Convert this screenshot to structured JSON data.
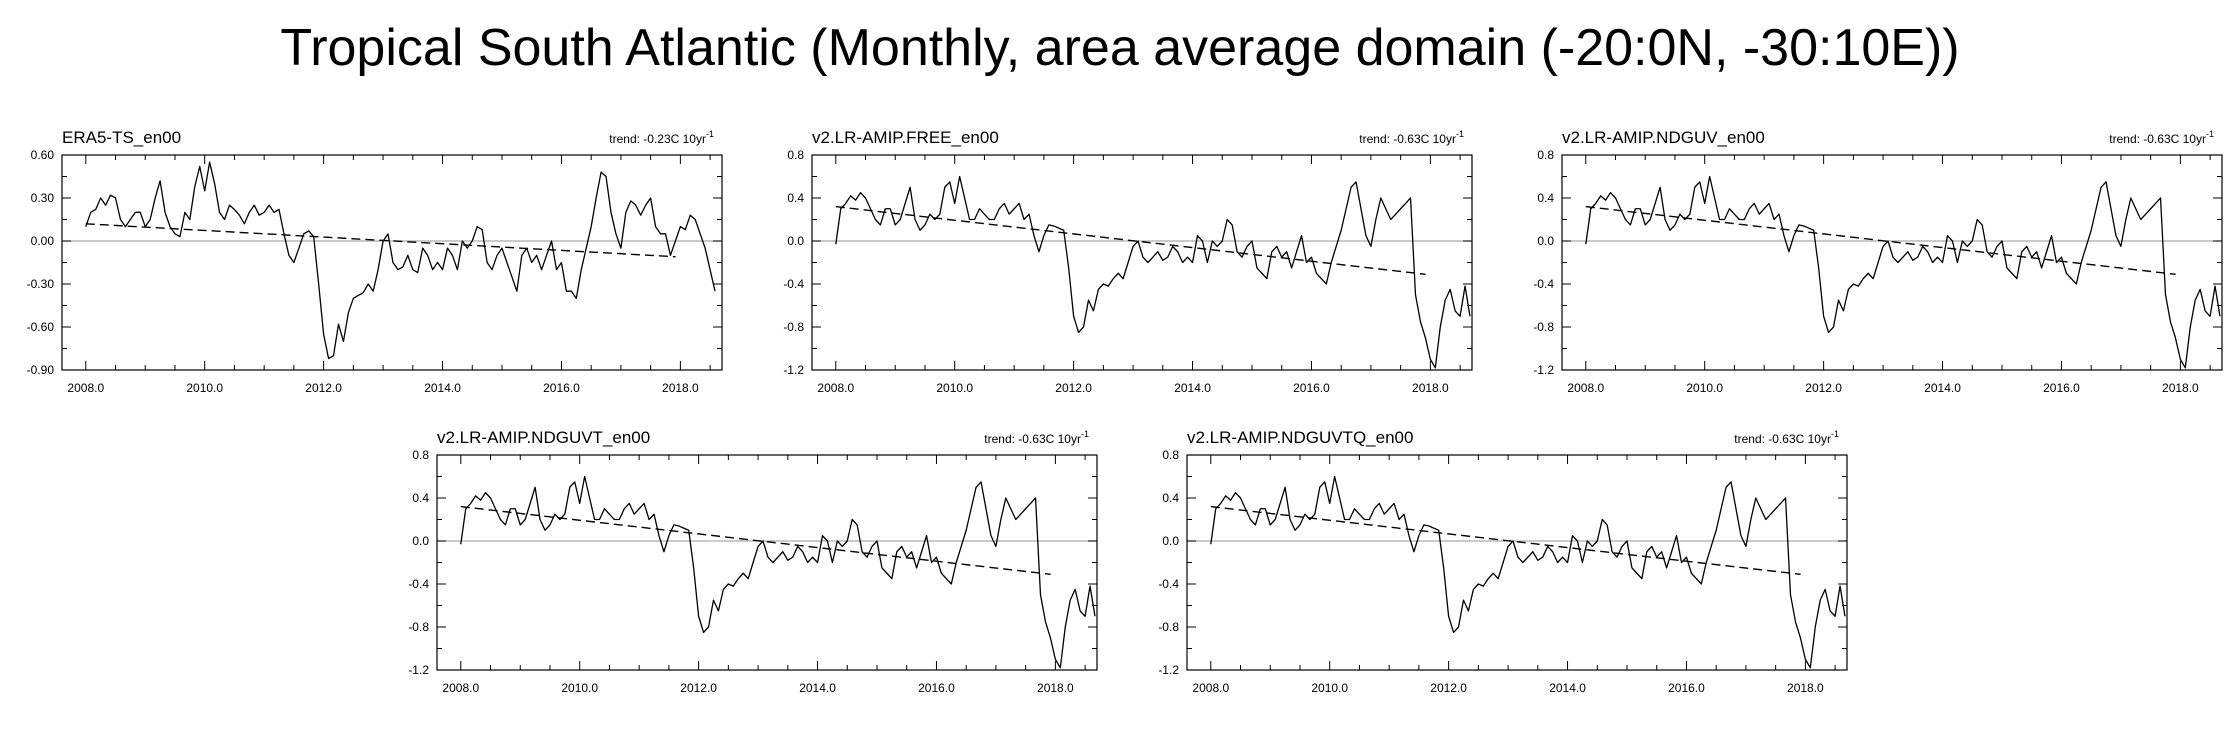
{
  "title": "Tropical South Atlantic (Monthly, area average domain (-20:0N, -30:10E))",
  "chart_data": [
    {
      "type": "line",
      "title": "ERA5-TS_en00",
      "trend_label": "trend: -0.23C 10yr",
      "trend_exponent": "-1",
      "x_ticks": [
        2008.0,
        2010.0,
        2012.0,
        2014.0,
        2016.0,
        2018.0
      ],
      "x_tick_labels": [
        "2008.0",
        "2010.0",
        "2012.0",
        "2014.0",
        "2016.0",
        "2018.0"
      ],
      "xlim": [
        2007.6,
        2018.7
      ],
      "ylim": [
        -0.9,
        0.6
      ],
      "y_ticks": [
        0.6,
        0.3,
        0.0,
        -0.3,
        -0.6,
        -0.9
      ],
      "y_tick_labels": [
        "0.60",
        "0.30",
        "0.00",
        "-0.30",
        "-0.60",
        "-0.90"
      ],
      "zero_line": true,
      "trend_line": {
        "x": [
          2008.0,
          2017.92
        ],
        "y": [
          0.12,
          -0.11
        ]
      },
      "series": [
        {
          "x_start": 2008.0,
          "x_step": 0.08333,
          "values": [
            0.1,
            0.2,
            0.22,
            0.3,
            0.25,
            0.32,
            0.3,
            0.15,
            0.1,
            0.15,
            0.2,
            0.2,
            0.1,
            0.15,
            0.3,
            0.42,
            0.2,
            0.1,
            0.05,
            0.03,
            0.2,
            0.15,
            0.38,
            0.52,
            0.35,
            0.55,
            0.4,
            0.2,
            0.15,
            0.25,
            0.22,
            0.18,
            0.12,
            0.2,
            0.25,
            0.18,
            0.2,
            0.25,
            0.2,
            0.22,
            0.05,
            -0.1,
            -0.15,
            -0.05,
            0.05,
            0.07,
            0.03,
            -0.3,
            -0.65,
            -0.82,
            -0.8,
            -0.58,
            -0.7,
            -0.5,
            -0.4,
            -0.38,
            -0.36,
            -0.3,
            -0.35,
            -0.2,
            0.0,
            0.05,
            -0.15,
            -0.2,
            -0.18,
            -0.1,
            -0.2,
            -0.22,
            -0.05,
            -0.1,
            -0.2,
            -0.15,
            -0.2,
            -0.05,
            -0.1,
            -0.2,
            0.0,
            -0.05,
            0.0,
            0.1,
            0.08,
            -0.15,
            -0.2,
            -0.1,
            -0.05,
            -0.15,
            -0.25,
            -0.35,
            -0.1,
            -0.05,
            -0.15,
            -0.1,
            -0.2,
            -0.1,
            0.0,
            -0.2,
            -0.15,
            -0.35,
            -0.35,
            -0.4,
            -0.2,
            -0.05,
            0.1,
            0.3,
            0.48,
            0.45,
            0.2,
            0.05,
            -0.05,
            0.2,
            0.28,
            0.25,
            0.18,
            0.25,
            0.3,
            0.1,
            0.05,
            0.05,
            -0.1,
            0.0,
            0.1,
            0.08,
            0.18,
            0.15,
            0.05,
            -0.05,
            -0.2,
            -0.35
          ]
        }
      ]
    },
    {
      "type": "line",
      "title": "v2.LR-AMIP.FREE_en00",
      "trend_label": "trend: -0.63C 10yr",
      "trend_exponent": "-1",
      "x_ticks": [
        2008.0,
        2010.0,
        2012.0,
        2014.0,
        2016.0,
        2018.0
      ],
      "x_tick_labels": [
        "2008.0",
        "2010.0",
        "2012.0",
        "2014.0",
        "2016.0",
        "2018.0"
      ],
      "xlim": [
        2007.6,
        2018.7
      ],
      "ylim": [
        -1.2,
        0.8
      ],
      "y_ticks": [
        0.8,
        0.4,
        0.0,
        -0.4,
        -0.8,
        -1.2
      ],
      "y_tick_labels": [
        "0.8",
        "0.4",
        "0.0",
        "-0.4",
        "-0.8",
        "-1.2"
      ],
      "zero_line": true,
      "trend_line": {
        "x": [
          2008.0,
          2017.92
        ],
        "y": [
          0.32,
          -0.31
        ]
      },
      "series": [
        {
          "x_start": 2008.0,
          "x_step": 0.08333,
          "values": [
            -0.03,
            0.3,
            0.35,
            0.42,
            0.38,
            0.45,
            0.4,
            0.3,
            0.2,
            0.15,
            0.3,
            0.3,
            0.15,
            0.2,
            0.35,
            0.5,
            0.2,
            0.1,
            0.15,
            0.25,
            0.2,
            0.25,
            0.5,
            0.55,
            0.35,
            0.6,
            0.4,
            0.2,
            0.2,
            0.3,
            0.25,
            0.2,
            0.2,
            0.3,
            0.35,
            0.25,
            0.3,
            0.35,
            0.2,
            0.25,
            0.05,
            -0.1,
            0.05,
            0.15,
            0.14,
            0.12,
            0.1,
            -0.25,
            -0.7,
            -0.85,
            -0.8,
            -0.55,
            -0.65,
            -0.45,
            -0.4,
            -0.42,
            -0.35,
            -0.3,
            -0.35,
            -0.2,
            -0.05,
            0.0,
            -0.15,
            -0.2,
            -0.15,
            -0.1,
            -0.18,
            -0.15,
            -0.05,
            -0.1,
            -0.2,
            -0.15,
            -0.2,
            0.05,
            0.0,
            -0.2,
            0.0,
            -0.05,
            0.0,
            0.2,
            0.15,
            -0.1,
            -0.15,
            -0.05,
            0.0,
            -0.25,
            -0.3,
            -0.35,
            -0.1,
            -0.05,
            -0.15,
            -0.1,
            -0.25,
            -0.1,
            0.05,
            -0.2,
            -0.15,
            -0.3,
            -0.35,
            -0.4,
            -0.2,
            -0.05,
            0.1,
            0.3,
            0.5,
            0.55,
            0.3,
            0.05,
            -0.05,
            0.2,
            0.4,
            0.3,
            0.2,
            0.25,
            0.3,
            0.35,
            0.4,
            -0.5,
            -0.75,
            -0.9,
            -1.1,
            -1.18,
            -0.8,
            -0.55,
            -0.45,
            -0.65,
            -0.7,
            -0.42,
            -0.7
          ]
        }
      ]
    },
    {
      "type": "line",
      "title": "v2.LR-AMIP.NDGUV_en00",
      "trend_label": "trend: -0.63C 10yr",
      "trend_exponent": "-1",
      "x_ticks": [
        2008.0,
        2010.0,
        2012.0,
        2014.0,
        2016.0,
        2018.0
      ],
      "x_tick_labels": [
        "2008.0",
        "2010.0",
        "2012.0",
        "2014.0",
        "2016.0",
        "2018.0"
      ],
      "xlim": [
        2007.6,
        2018.7
      ],
      "ylim": [
        -1.2,
        0.8
      ],
      "y_ticks": [
        0.8,
        0.4,
        0.0,
        -0.4,
        -0.8,
        -1.2
      ],
      "y_tick_labels": [
        "0.8",
        "0.4",
        "0.0",
        "-0.4",
        "-0.8",
        "-1.2"
      ],
      "zero_line": true,
      "trend_line": {
        "x": [
          2008.0,
          2017.92
        ],
        "y": [
          0.32,
          -0.31
        ]
      },
      "series": [
        {
          "x_start": 2008.0,
          "x_step": 0.08333,
          "values": [
            -0.03,
            0.3,
            0.35,
            0.42,
            0.38,
            0.45,
            0.4,
            0.3,
            0.2,
            0.15,
            0.3,
            0.3,
            0.15,
            0.2,
            0.35,
            0.5,
            0.2,
            0.1,
            0.15,
            0.25,
            0.2,
            0.25,
            0.5,
            0.55,
            0.35,
            0.6,
            0.4,
            0.2,
            0.2,
            0.3,
            0.25,
            0.2,
            0.2,
            0.3,
            0.35,
            0.25,
            0.3,
            0.35,
            0.2,
            0.25,
            0.05,
            -0.1,
            0.05,
            0.15,
            0.14,
            0.12,
            0.1,
            -0.25,
            -0.7,
            -0.85,
            -0.8,
            -0.55,
            -0.65,
            -0.45,
            -0.4,
            -0.42,
            -0.35,
            -0.3,
            -0.35,
            -0.2,
            -0.05,
            0.0,
            -0.15,
            -0.2,
            -0.15,
            -0.1,
            -0.18,
            -0.15,
            -0.05,
            -0.1,
            -0.2,
            -0.15,
            -0.2,
            0.05,
            0.0,
            -0.2,
            0.0,
            -0.05,
            0.0,
            0.2,
            0.15,
            -0.1,
            -0.15,
            -0.05,
            0.0,
            -0.25,
            -0.3,
            -0.35,
            -0.1,
            -0.05,
            -0.15,
            -0.1,
            -0.25,
            -0.1,
            0.05,
            -0.2,
            -0.15,
            -0.3,
            -0.35,
            -0.4,
            -0.2,
            -0.05,
            0.1,
            0.3,
            0.5,
            0.55,
            0.3,
            0.05,
            -0.05,
            0.2,
            0.4,
            0.3,
            0.2,
            0.25,
            0.3,
            0.35,
            0.4,
            -0.5,
            -0.75,
            -0.9,
            -1.1,
            -1.18,
            -0.8,
            -0.55,
            -0.45,
            -0.65,
            -0.7,
            -0.42,
            -0.7
          ]
        }
      ]
    },
    {
      "type": "line",
      "title": "v2.LR-AMIP.NDGUVT_en00",
      "trend_label": "trend: -0.63C 10yr",
      "trend_exponent": "-1",
      "x_ticks": [
        2008.0,
        2010.0,
        2012.0,
        2014.0,
        2016.0,
        2018.0
      ],
      "x_tick_labels": [
        "2008.0",
        "2010.0",
        "2012.0",
        "2014.0",
        "2016.0",
        "2018.0"
      ],
      "xlim": [
        2007.6,
        2018.7
      ],
      "ylim": [
        -1.2,
        0.8
      ],
      "y_ticks": [
        0.8,
        0.4,
        0.0,
        -0.4,
        -0.8,
        -1.2
      ],
      "y_tick_labels": [
        "0.8",
        "0.4",
        "0.0",
        "-0.4",
        "-0.8",
        "-1.2"
      ],
      "zero_line": true,
      "trend_line": {
        "x": [
          2008.0,
          2017.92
        ],
        "y": [
          0.32,
          -0.31
        ]
      },
      "series": [
        {
          "x_start": 2008.0,
          "x_step": 0.08333,
          "values": [
            -0.03,
            0.3,
            0.35,
            0.42,
            0.38,
            0.45,
            0.4,
            0.3,
            0.2,
            0.15,
            0.3,
            0.3,
            0.15,
            0.2,
            0.35,
            0.5,
            0.2,
            0.1,
            0.15,
            0.25,
            0.2,
            0.25,
            0.5,
            0.55,
            0.35,
            0.6,
            0.4,
            0.2,
            0.2,
            0.3,
            0.25,
            0.2,
            0.2,
            0.3,
            0.35,
            0.25,
            0.3,
            0.35,
            0.2,
            0.25,
            0.05,
            -0.1,
            0.05,
            0.15,
            0.14,
            0.12,
            0.1,
            -0.25,
            -0.7,
            -0.85,
            -0.8,
            -0.55,
            -0.65,
            -0.45,
            -0.4,
            -0.42,
            -0.35,
            -0.3,
            -0.35,
            -0.2,
            -0.05,
            0.0,
            -0.15,
            -0.2,
            -0.15,
            -0.1,
            -0.18,
            -0.15,
            -0.05,
            -0.1,
            -0.2,
            -0.15,
            -0.2,
            0.05,
            0.0,
            -0.2,
            0.0,
            -0.05,
            0.0,
            0.2,
            0.15,
            -0.1,
            -0.15,
            -0.05,
            0.0,
            -0.25,
            -0.3,
            -0.35,
            -0.1,
            -0.05,
            -0.15,
            -0.1,
            -0.25,
            -0.1,
            0.05,
            -0.2,
            -0.15,
            -0.3,
            -0.35,
            -0.4,
            -0.2,
            -0.05,
            0.1,
            0.3,
            0.5,
            0.55,
            0.3,
            0.05,
            -0.05,
            0.2,
            0.4,
            0.3,
            0.2,
            0.25,
            0.3,
            0.35,
            0.4,
            -0.5,
            -0.75,
            -0.9,
            -1.1,
            -1.18,
            -0.8,
            -0.55,
            -0.45,
            -0.65,
            -0.7,
            -0.42,
            -0.7
          ]
        }
      ]
    },
    {
      "type": "line",
      "title": "v2.LR-AMIP.NDGUVTQ_en00",
      "trend_label": "trend: -0.63C 10yr",
      "trend_exponent": "-1",
      "x_ticks": [
        2008.0,
        2010.0,
        2012.0,
        2014.0,
        2016.0,
        2018.0
      ],
      "x_tick_labels": [
        "2008.0",
        "2010.0",
        "2012.0",
        "2014.0",
        "2016.0",
        "2018.0"
      ],
      "xlim": [
        2007.6,
        2018.7
      ],
      "ylim": [
        -1.2,
        0.8
      ],
      "y_ticks": [
        0.8,
        0.4,
        0.0,
        -0.4,
        -0.8,
        -1.2
      ],
      "y_tick_labels": [
        "0.8",
        "0.4",
        "0.0",
        "-0.4",
        "-0.8",
        "-1.2"
      ],
      "zero_line": true,
      "trend_line": {
        "x": [
          2008.0,
          2017.92
        ],
        "y": [
          0.32,
          -0.31
        ]
      },
      "series": [
        {
          "x_start": 2008.0,
          "x_step": 0.08333,
          "values": [
            -0.03,
            0.3,
            0.35,
            0.42,
            0.38,
            0.45,
            0.4,
            0.3,
            0.2,
            0.15,
            0.3,
            0.3,
            0.15,
            0.2,
            0.35,
            0.5,
            0.2,
            0.1,
            0.15,
            0.25,
            0.2,
            0.25,
            0.5,
            0.55,
            0.35,
            0.6,
            0.4,
            0.2,
            0.2,
            0.3,
            0.25,
            0.2,
            0.2,
            0.3,
            0.35,
            0.25,
            0.3,
            0.35,
            0.2,
            0.25,
            0.05,
            -0.1,
            0.05,
            0.15,
            0.14,
            0.12,
            0.1,
            -0.25,
            -0.7,
            -0.85,
            -0.8,
            -0.55,
            -0.65,
            -0.45,
            -0.4,
            -0.42,
            -0.35,
            -0.3,
            -0.35,
            -0.2,
            -0.05,
            0.0,
            -0.15,
            -0.2,
            -0.15,
            -0.1,
            -0.18,
            -0.15,
            -0.05,
            -0.1,
            -0.2,
            -0.15,
            -0.2,
            0.05,
            0.0,
            -0.2,
            0.0,
            -0.05,
            0.0,
            0.2,
            0.15,
            -0.1,
            -0.15,
            -0.05,
            0.0,
            -0.25,
            -0.3,
            -0.35,
            -0.1,
            -0.05,
            -0.15,
            -0.1,
            -0.25,
            -0.1,
            0.05,
            -0.2,
            -0.15,
            -0.3,
            -0.35,
            -0.4,
            -0.2,
            -0.05,
            0.1,
            0.3,
            0.5,
            0.55,
            0.3,
            0.05,
            -0.05,
            0.2,
            0.4,
            0.3,
            0.2,
            0.25,
            0.3,
            0.35,
            0.4,
            -0.5,
            -0.75,
            -0.9,
            -1.1,
            -1.18,
            -0.8,
            -0.55,
            -0.45,
            -0.65,
            -0.7,
            -0.42,
            -0.7
          ]
        }
      ]
    }
  ]
}
